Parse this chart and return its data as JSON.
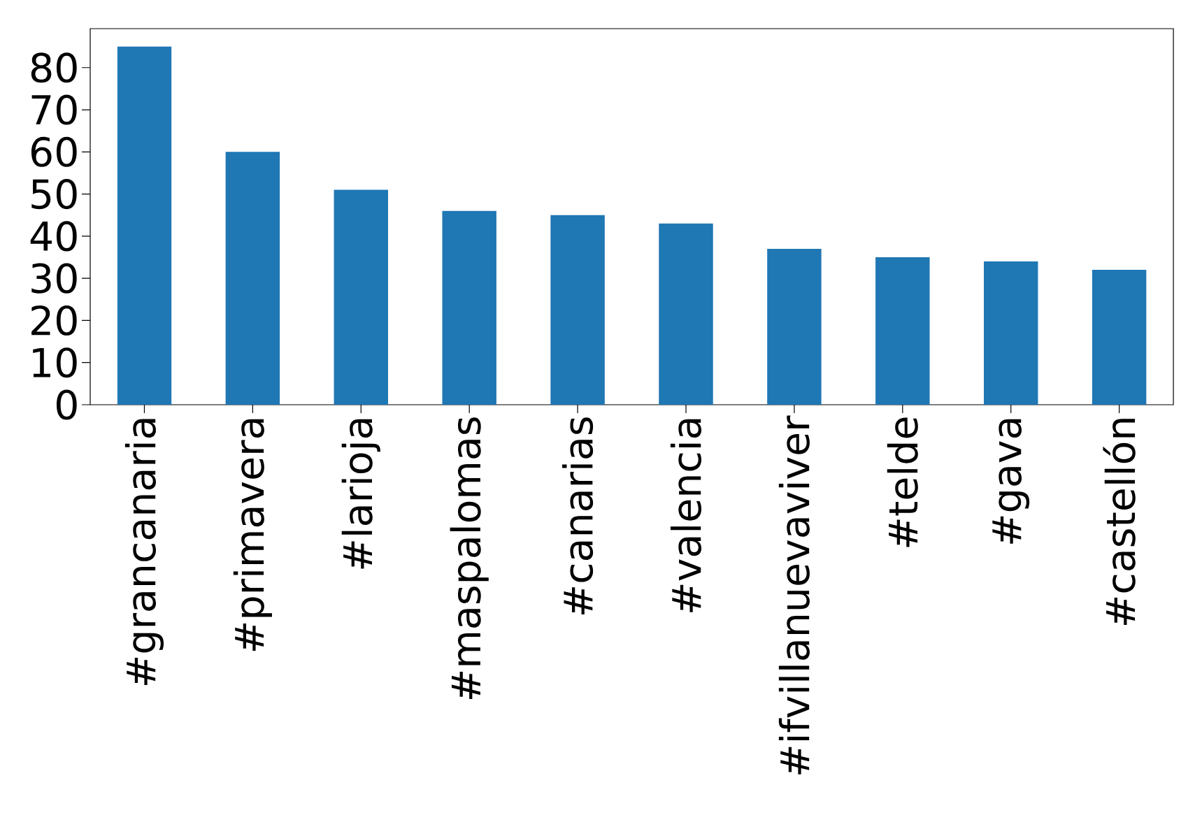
{
  "chart_data": {
    "type": "bar",
    "categories": [
      "#grancanaria",
      "#primavera",
      "#larioja",
      "#maspalomas",
      "#canarias",
      "#valencia",
      "#ifvillanuevaviver",
      "#telde",
      "#gava",
      "#castellón"
    ],
    "values": [
      85,
      60,
      51,
      46,
      45,
      43,
      37,
      35,
      34,
      32
    ],
    "color": "#1f77b4",
    "ylim": [
      0,
      89.25
    ],
    "yticks": [
      0,
      10,
      20,
      30,
      40,
      50,
      60,
      70,
      80
    ]
  }
}
